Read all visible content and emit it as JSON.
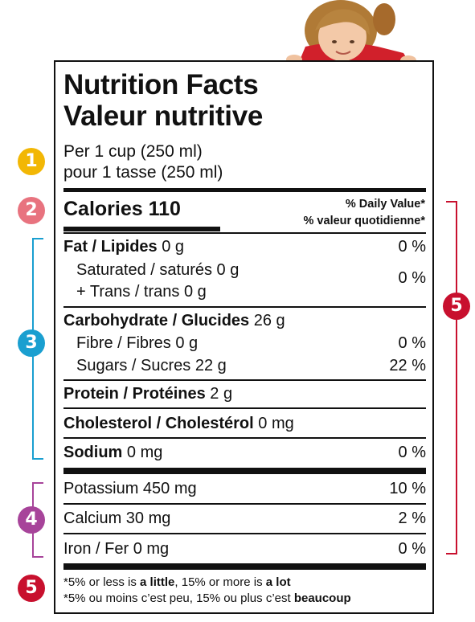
{
  "title": {
    "en": "Nutrition Facts",
    "fr": "Valeur nutritive"
  },
  "serving": {
    "en": "Per 1 cup (250 ml)",
    "fr": "pour 1 tasse (250 ml)"
  },
  "calories": {
    "label": "Calories",
    "value": "110"
  },
  "daily_value_header": {
    "en": "% Daily Value*",
    "fr": "% valeur quotidienne*"
  },
  "rows": {
    "fat": {
      "label": "Fat / Lipides",
      "amount": "0 g",
      "pct": "0 %"
    },
    "saturated": {
      "label": "Saturated / saturés 0 g"
    },
    "trans": {
      "label": "+ Trans / trans 0 g"
    },
    "sat_trans_pct": "0 %",
    "carbohydrate": {
      "label": "Carbohydrate / Glucides",
      "amount": "26 g"
    },
    "fibre": {
      "label": "Fibre / Fibres 0 g",
      "pct": "0 %"
    },
    "sugars": {
      "label": "Sugars / Sucres 22 g",
      "pct": "22 %"
    },
    "protein": {
      "label": "Protein / Protéines",
      "amount": "2 g"
    },
    "cholesterol": {
      "label": "Cholesterol / Cholestérol",
      "amount": "0 mg"
    },
    "sodium": {
      "label": "Sodium",
      "amount": "0 mg",
      "pct": "0 %"
    },
    "potassium": {
      "label": "Potassium 450 mg",
      "pct": "10 %"
    },
    "calcium": {
      "label": "Calcium 30 mg",
      "pct": "2 %"
    },
    "iron": {
      "label": "Iron / Fer 0 mg",
      "pct": "0 %"
    }
  },
  "footnote": {
    "en_prefix": "*5% or less is ",
    "en_little": "a little",
    "en_mid": ", 15% or more is ",
    "en_lot": "a lot",
    "fr_prefix": "*5% ou moins c’est peu, 15% ou plus c’est ",
    "fr_lot": "beaucoup"
  },
  "badges": [
    "1",
    "2",
    "3",
    "4",
    "5",
    "5"
  ],
  "colors": {
    "badge1": "#f2b705",
    "badge2": "#e8737f",
    "badge3": "#1a9fd0",
    "badge4": "#a7449a",
    "badge5": "#c8102e"
  }
}
